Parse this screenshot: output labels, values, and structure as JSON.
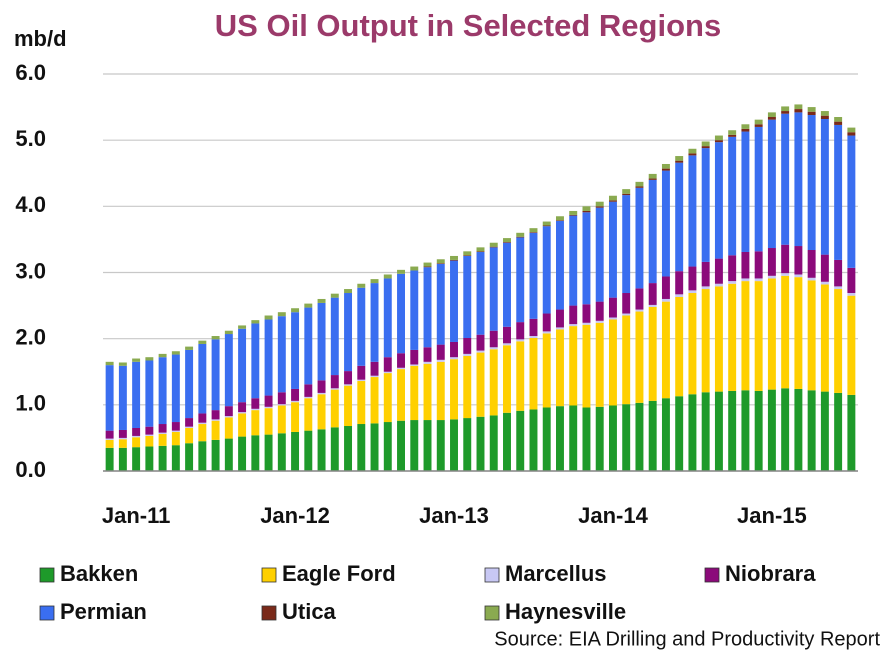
{
  "chart_data": {
    "type": "stacked-bar",
    "title": "US Oil Output in Selected  Regions",
    "ylabel": "mb/d",
    "source": "Source: EIA Drilling and Productivity Report",
    "categories": [
      "Jan-11",
      null,
      null,
      null,
      null,
      null,
      null,
      null,
      null,
      null,
      null,
      null,
      "Jan-12",
      null,
      null,
      null,
      null,
      null,
      null,
      null,
      null,
      null,
      null,
      null,
      "Jan-13",
      null,
      null,
      null,
      null,
      null,
      null,
      null,
      null,
      null,
      null,
      null,
      "Jan-14",
      null,
      null,
      null,
      null,
      null,
      null,
      null,
      null,
      null,
      null,
      null,
      "Jan-15",
      null,
      null,
      null,
      null,
      null,
      null,
      null,
      null
    ],
    "ylim": [
      0,
      6
    ],
    "yticks": [
      {
        "value": 0,
        "label": "0.0"
      },
      {
        "value": 1,
        "label": "1.0"
      },
      {
        "value": 2,
        "label": "2.0"
      },
      {
        "value": 3,
        "label": "3.0"
      },
      {
        "value": 4,
        "label": "4.0"
      },
      {
        "value": 5,
        "label": "5.0"
      },
      {
        "value": 6,
        "label": "6.0"
      }
    ],
    "grid": true,
    "series": [
      {
        "name": "Bakken",
        "color": "#1e9a2a",
        "values": [
          0.35,
          0.35,
          0.36,
          0.37,
          0.38,
          0.39,
          0.42,
          0.45,
          0.47,
          0.49,
          0.52,
          0.54,
          0.55,
          0.57,
          0.59,
          0.61,
          0.63,
          0.66,
          0.68,
          0.71,
          0.72,
          0.74,
          0.76,
          0.77,
          0.77,
          0.77,
          0.78,
          0.8,
          0.82,
          0.84,
          0.88,
          0.91,
          0.93,
          0.96,
          0.98,
          0.99,
          0.96,
          0.97,
          0.99,
          1.01,
          1.03,
          1.06,
          1.1,
          1.13,
          1.16,
          1.19,
          1.2,
          1.21,
          1.22,
          1.21,
          1.23,
          1.25,
          1.24,
          1.22,
          1.2,
          1.18,
          1.15
        ]
      },
      {
        "name": "Eagle Ford",
        "color": "#ffd000",
        "values": [
          0.12,
          0.13,
          0.15,
          0.16,
          0.18,
          0.2,
          0.23,
          0.26,
          0.29,
          0.32,
          0.35,
          0.38,
          0.4,
          0.42,
          0.45,
          0.49,
          0.53,
          0.57,
          0.61,
          0.65,
          0.7,
          0.74,
          0.78,
          0.82,
          0.85,
          0.88,
          0.91,
          0.94,
          0.97,
          1.0,
          1.02,
          1.05,
          1.08,
          1.12,
          1.16,
          1.2,
          1.25,
          1.27,
          1.3,
          1.34,
          1.38,
          1.42,
          1.46,
          1.5,
          1.53,
          1.56,
          1.59,
          1.62,
          1.65,
          1.66,
          1.68,
          1.7,
          1.69,
          1.66,
          1.62,
          1.57,
          1.5
        ]
      },
      {
        "name": "Marcellus",
        "color": "#c8c8f4",
        "values": [
          0.02,
          0.02,
          0.02,
          0.02,
          0.02,
          0.02,
          0.02,
          0.02,
          0.02,
          0.02,
          0.02,
          0.02,
          0.02,
          0.02,
          0.02,
          0.02,
          0.02,
          0.02,
          0.02,
          0.02,
          0.02,
          0.02,
          0.02,
          0.02,
          0.03,
          0.03,
          0.03,
          0.03,
          0.03,
          0.03,
          0.03,
          0.03,
          0.03,
          0.03,
          0.03,
          0.03,
          0.03,
          0.03,
          0.03,
          0.03,
          0.03,
          0.03,
          0.04,
          0.04,
          0.04,
          0.04,
          0.04,
          0.04,
          0.04,
          0.04,
          0.04,
          0.04,
          0.04,
          0.04,
          0.04,
          0.04,
          0.04
        ]
      },
      {
        "name": "Niobrara",
        "color": "#8b0a7a",
        "values": [
          0.12,
          0.12,
          0.12,
          0.12,
          0.13,
          0.13,
          0.13,
          0.14,
          0.14,
          0.15,
          0.15,
          0.16,
          0.17,
          0.18,
          0.18,
          0.19,
          0.19,
          0.2,
          0.2,
          0.21,
          0.21,
          0.22,
          0.22,
          0.22,
          0.22,
          0.23,
          0.23,
          0.24,
          0.24,
          0.25,
          0.25,
          0.26,
          0.26,
          0.27,
          0.27,
          0.28,
          0.28,
          0.29,
          0.3,
          0.31,
          0.32,
          0.33,
          0.34,
          0.35,
          0.36,
          0.37,
          0.38,
          0.39,
          0.4,
          0.41,
          0.42,
          0.43,
          0.43,
          0.42,
          0.41,
          0.4,
          0.38
        ]
      },
      {
        "name": "Permian",
        "color": "#3a6ef0",
        "values": [
          0.99,
          0.97,
          1.0,
          1.0,
          1.01,
          1.02,
          1.03,
          1.05,
          1.07,
          1.09,
          1.11,
          1.13,
          1.15,
          1.15,
          1.16,
          1.16,
          1.17,
          1.17,
          1.18,
          1.18,
          1.19,
          1.19,
          1.2,
          1.2,
          1.21,
          1.22,
          1.23,
          1.24,
          1.25,
          1.26,
          1.27,
          1.28,
          1.3,
          1.32,
          1.34,
          1.36,
          1.39,
          1.42,
          1.45,
          1.48,
          1.52,
          1.56,
          1.6,
          1.64,
          1.68,
          1.72,
          1.76,
          1.79,
          1.82,
          1.88,
          1.94,
          1.98,
          2.02,
          2.04,
          2.05,
          2.04,
          2.0
        ]
      },
      {
        "name": "Utica",
        "color": "#7a2a1a",
        "values": [
          0,
          0,
          0,
          0,
          0,
          0,
          0,
          0,
          0,
          0,
          0,
          0,
          0,
          0,
          0,
          0,
          0,
          0,
          0,
          0,
          0,
          0,
          0,
          0,
          0.01,
          0.01,
          0.01,
          0.01,
          0.01,
          0.01,
          0.01,
          0.01,
          0.01,
          0.01,
          0.01,
          0.01,
          0.02,
          0.02,
          0.02,
          0.02,
          0.02,
          0.02,
          0.03,
          0.03,
          0.03,
          0.03,
          0.03,
          0.03,
          0.04,
          0.04,
          0.04,
          0.04,
          0.05,
          0.05,
          0.05,
          0.05,
          0.05
        ]
      },
      {
        "name": "Haynesville",
        "color": "#8aaa50",
        "values": [
          0.05,
          0.05,
          0.05,
          0.05,
          0.05,
          0.05,
          0.05,
          0.05,
          0.05,
          0.05,
          0.05,
          0.05,
          0.06,
          0.06,
          0.06,
          0.06,
          0.06,
          0.06,
          0.06,
          0.06,
          0.06,
          0.06,
          0.06,
          0.06,
          0.06,
          0.06,
          0.06,
          0.06,
          0.06,
          0.06,
          0.06,
          0.06,
          0.06,
          0.06,
          0.06,
          0.06,
          0.07,
          0.07,
          0.07,
          0.07,
          0.07,
          0.07,
          0.07,
          0.07,
          0.07,
          0.07,
          0.07,
          0.07,
          0.07,
          0.07,
          0.07,
          0.07,
          0.07,
          0.07,
          0.07,
          0.07,
          0.07
        ]
      }
    ]
  }
}
